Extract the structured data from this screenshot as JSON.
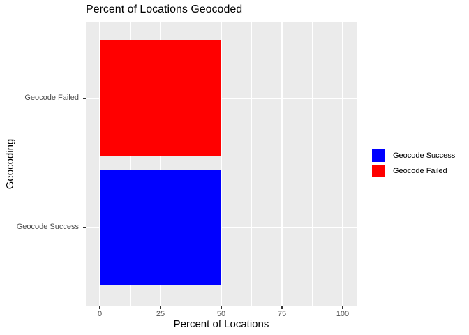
{
  "chart_data": {
    "type": "bar",
    "orientation": "horizontal",
    "title": "Percent of Locations Geocoded",
    "xlabel": "Percent of Locations",
    "ylabel": "Geocoding",
    "categories": [
      "Geocode Failed",
      "Geocode Success"
    ],
    "values": [
      50,
      50
    ],
    "series_colors": {
      "Geocode Failed": "#FF0000",
      "Geocode Success": "#0000FF"
    },
    "xlim": [
      0,
      100
    ],
    "x_ticks": [
      "0",
      "25",
      "50",
      "75",
      "100"
    ],
    "x_tick_values": [
      0,
      25,
      50,
      75,
      100
    ],
    "grid": "white major+minor vertical lines, white major horizontal lines on gray panel",
    "legend_position": "right",
    "legend": [
      {
        "label": "Geocode Success",
        "color": "#0000FF"
      },
      {
        "label": "Geocode Failed",
        "color": "#FF0000"
      }
    ]
  },
  "style": {
    "panel_background": "#EBEBEB",
    "grid_color": "#FFFFFF",
    "tick_label_color": "#4D4D4D",
    "tick_mark_color": "#333333",
    "text_color": "#000000",
    "figure_background": "#FFFFFF"
  }
}
